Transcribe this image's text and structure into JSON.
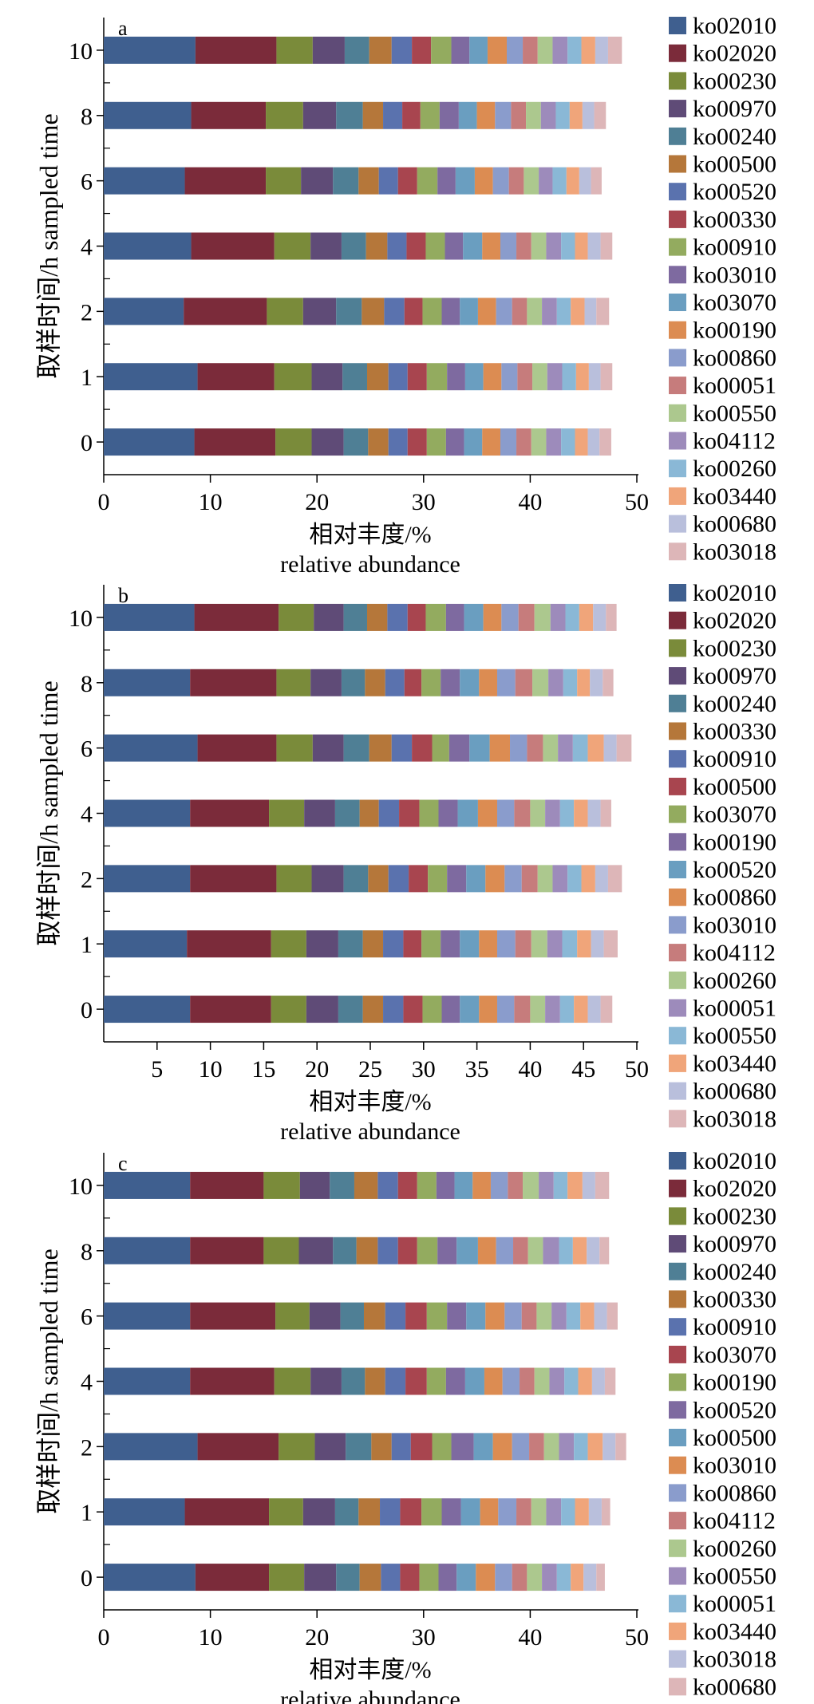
{
  "chart_data": [
    {
      "panel": "a",
      "type": "bar",
      "orientation": "horizontal",
      "stacked": true,
      "ylabel_cn": "取样时间/h",
      "ylabel_en": "sampled time",
      "xlabel_cn": "相对丰度/%",
      "xlabel_en": "relative abundance",
      "xlim": [
        0,
        50
      ],
      "xticks": [
        "0",
        "10",
        "20",
        "30",
        "40",
        "50"
      ],
      "categories": [
        "10",
        "8",
        "6",
        "4",
        "2",
        "1",
        "0"
      ],
      "series": [
        {
          "name": "ko02010",
          "color": "#3f5f8f",
          "values": [
            8.6,
            8.2,
            7.6,
            8.2,
            7.5,
            8.8,
            8.5
          ]
        },
        {
          "name": "ko02020",
          "color": "#7b2b3a",
          "values": [
            7.6,
            7.0,
            7.6,
            7.8,
            7.8,
            7.2,
            7.6
          ]
        },
        {
          "name": "ko00230",
          "color": "#7a8b3a",
          "values": [
            3.4,
            3.5,
            3.3,
            3.4,
            3.4,
            3.5,
            3.4
          ]
        },
        {
          "name": "ko00970",
          "color": "#5f4b77",
          "values": [
            3.0,
            3.1,
            3.0,
            2.9,
            3.1,
            2.9,
            3.0
          ]
        },
        {
          "name": "ko00240",
          "color": "#4f7f95",
          "values": [
            2.3,
            2.5,
            2.4,
            2.3,
            2.4,
            2.3,
            2.3
          ]
        },
        {
          "name": "ko00500",
          "color": "#b5773a",
          "values": [
            2.1,
            1.9,
            1.9,
            2.0,
            2.1,
            2.0,
            1.9
          ]
        },
        {
          "name": "ko00520",
          "color": "#5a72ae",
          "values": [
            1.9,
            1.8,
            1.8,
            1.8,
            1.9,
            1.8,
            1.8
          ]
        },
        {
          "name": "ko00330",
          "color": "#a8454f",
          "values": [
            1.8,
            1.7,
            1.8,
            1.8,
            1.7,
            1.8,
            1.8
          ]
        },
        {
          "name": "ko00910",
          "color": "#93ab5f",
          "values": [
            1.9,
            1.8,
            1.9,
            1.8,
            1.8,
            1.9,
            1.8
          ]
        },
        {
          "name": "ko03010",
          "color": "#7e6aa0",
          "values": [
            1.7,
            1.8,
            1.7,
            1.7,
            1.7,
            1.7,
            1.7
          ]
        },
        {
          "name": "ko03070",
          "color": "#6a9ec0",
          "values": [
            1.7,
            1.7,
            1.8,
            1.8,
            1.7,
            1.7,
            1.7
          ]
        },
        {
          "name": "ko00190",
          "color": "#dc8c52",
          "values": [
            1.8,
            1.7,
            1.7,
            1.7,
            1.7,
            1.7,
            1.7
          ]
        },
        {
          "name": "ko00860",
          "color": "#8a9ccc",
          "values": [
            1.5,
            1.5,
            1.5,
            1.5,
            1.5,
            1.5,
            1.5
          ]
        },
        {
          "name": "ko00051",
          "color": "#c67c7c",
          "values": [
            1.4,
            1.4,
            1.4,
            1.4,
            1.4,
            1.4,
            1.4
          ]
        },
        {
          "name": "ko00550",
          "color": "#acc88e",
          "values": [
            1.4,
            1.4,
            1.4,
            1.4,
            1.4,
            1.4,
            1.4
          ]
        },
        {
          "name": "ko04112",
          "color": "#9d8bbb",
          "values": [
            1.4,
            1.4,
            1.3,
            1.4,
            1.4,
            1.4,
            1.4
          ]
        },
        {
          "name": "ko00260",
          "color": "#8ab8d6",
          "values": [
            1.3,
            1.3,
            1.3,
            1.3,
            1.3,
            1.3,
            1.3
          ]
        },
        {
          "name": "ko03440",
          "color": "#f0a57a",
          "values": [
            1.3,
            1.2,
            1.2,
            1.2,
            1.3,
            1.2,
            1.2
          ]
        },
        {
          "name": "ko00680",
          "color": "#b9bfdc",
          "values": [
            1.2,
            1.1,
            1.1,
            1.2,
            1.1,
            1.1,
            1.1
          ]
        },
        {
          "name": "ko03018",
          "color": "#ddb6b8",
          "values": [
            1.3,
            1.1,
            1.0,
            1.1,
            1.2,
            1.1,
            1.1
          ]
        }
      ]
    },
    {
      "panel": "b",
      "type": "bar",
      "orientation": "horizontal",
      "stacked": true,
      "ylabel_cn": "取样时间/h",
      "ylabel_en": "sampled time",
      "xlabel_cn": "相对丰度/%",
      "xlabel_en": "relative abundance",
      "xlim": [
        0,
        50
      ],
      "xticks": [
        "5",
        "10",
        "15",
        "20",
        "25",
        "30",
        "35",
        "40",
        "45",
        "50"
      ],
      "categories": [
        "10",
        "8",
        "6",
        "4",
        "2",
        "1",
        "0"
      ],
      "series": [
        {
          "name": "ko02010",
          "color": "#3f5f8f",
          "values": [
            8.5,
            8.1,
            8.8,
            8.1,
            8.1,
            7.8,
            8.1
          ]
        },
        {
          "name": "ko02020",
          "color": "#7b2b3a",
          "values": [
            7.9,
            8.1,
            7.4,
            7.4,
            8.1,
            7.9,
            7.6
          ]
        },
        {
          "name": "ko00230",
          "color": "#7a8b3a",
          "values": [
            3.3,
            3.2,
            3.4,
            3.3,
            3.3,
            3.3,
            3.3
          ]
        },
        {
          "name": "ko00970",
          "color": "#5f4b77",
          "values": [
            2.8,
            2.9,
            2.9,
            2.9,
            3.0,
            3.0,
            3.0
          ]
        },
        {
          "name": "ko00240",
          "color": "#4f7f95",
          "values": [
            2.2,
            2.2,
            2.4,
            2.3,
            2.3,
            2.3,
            2.3
          ]
        },
        {
          "name": "ko00330",
          "color": "#b5773a",
          "values": [
            1.9,
            1.9,
            2.1,
            1.8,
            1.9,
            1.9,
            1.9
          ]
        },
        {
          "name": "ko00910",
          "color": "#5a72ae",
          "values": [
            1.9,
            1.8,
            1.9,
            1.9,
            1.9,
            1.9,
            1.9
          ]
        },
        {
          "name": "ko00500",
          "color": "#a8454f",
          "values": [
            1.7,
            1.6,
            1.9,
            1.9,
            1.8,
            1.7,
            1.8
          ]
        },
        {
          "name": "ko03070",
          "color": "#93ab5f",
          "values": [
            1.9,
            1.8,
            1.6,
            1.8,
            1.8,
            1.8,
            1.8
          ]
        },
        {
          "name": "ko00190",
          "color": "#7e6aa0",
          "values": [
            1.7,
            1.8,
            1.9,
            1.8,
            1.8,
            1.8,
            1.7
          ]
        },
        {
          "name": "ko00520",
          "color": "#6a9ec0",
          "values": [
            1.8,
            1.8,
            1.9,
            1.9,
            1.8,
            1.8,
            1.8
          ]
        },
        {
          "name": "ko00860",
          "color": "#dc8c52",
          "values": [
            1.7,
            1.7,
            1.9,
            1.8,
            1.8,
            1.7,
            1.7
          ]
        },
        {
          "name": "ko03010",
          "color": "#8a9ccc",
          "values": [
            1.6,
            1.7,
            1.6,
            1.6,
            1.6,
            1.7,
            1.6
          ]
        },
        {
          "name": "ko04112",
          "color": "#c67c7c",
          "values": [
            1.5,
            1.6,
            1.5,
            1.5,
            1.5,
            1.5,
            1.5
          ]
        },
        {
          "name": "ko00260",
          "color": "#acc88e",
          "values": [
            1.5,
            1.5,
            1.4,
            1.4,
            1.4,
            1.5,
            1.4
          ]
        },
        {
          "name": "ko00051",
          "color": "#9d8bbb",
          "values": [
            1.4,
            1.4,
            1.4,
            1.4,
            1.4,
            1.4,
            1.4
          ]
        },
        {
          "name": "ko00550",
          "color": "#8ab8d6",
          "values": [
            1.3,
            1.3,
            1.4,
            1.3,
            1.3,
            1.4,
            1.3
          ]
        },
        {
          "name": "ko03440",
          "color": "#f0a57a",
          "values": [
            1.3,
            1.2,
            1.5,
            1.3,
            1.3,
            1.3,
            1.3
          ]
        },
        {
          "name": "ko00680",
          "color": "#b9bfdc",
          "values": [
            1.2,
            1.2,
            1.2,
            1.2,
            1.2,
            1.2,
            1.2
          ]
        },
        {
          "name": "ko03018",
          "color": "#ddb6b8",
          "values": [
            1.0,
            1.0,
            1.4,
            1.0,
            1.3,
            1.3,
            1.1
          ]
        }
      ]
    },
    {
      "panel": "c",
      "type": "bar",
      "orientation": "horizontal",
      "stacked": true,
      "ylabel_cn": "取样时间/h",
      "ylabel_en": "sampled time",
      "xlabel_cn": "相对丰度/%",
      "xlabel_en": "relative abundance",
      "xlim": [
        0,
        50
      ],
      "xticks": [
        "0",
        "10",
        "20",
        "30",
        "40",
        "50"
      ],
      "categories": [
        "10",
        "8",
        "6",
        "4",
        "2",
        "1",
        "0"
      ],
      "series": [
        {
          "name": "ko02010",
          "color": "#3f5f8f",
          "values": [
            8.1,
            8.1,
            8.1,
            8.1,
            8.8,
            7.6,
            8.6
          ]
        },
        {
          "name": "ko02020",
          "color": "#7b2b3a",
          "values": [
            6.9,
            6.9,
            8.0,
            7.9,
            7.6,
            7.9,
            6.9
          ]
        },
        {
          "name": "ko00230",
          "color": "#7a8b3a",
          "values": [
            3.4,
            3.3,
            3.2,
            3.4,
            3.4,
            3.2,
            3.3
          ]
        },
        {
          "name": "ko00970",
          "color": "#5f4b77",
          "values": [
            2.8,
            3.2,
            2.9,
            2.9,
            2.9,
            3.0,
            3.0
          ]
        },
        {
          "name": "ko00240",
          "color": "#4f7f95",
          "values": [
            2.3,
            2.2,
            2.2,
            2.2,
            2.4,
            2.2,
            2.2
          ]
        },
        {
          "name": "ko00330",
          "color": "#b5773a",
          "values": [
            2.2,
            2.0,
            2.0,
            1.9,
            1.9,
            2.0,
            2.0
          ]
        },
        {
          "name": "ko00910",
          "color": "#5a72ae",
          "values": [
            1.9,
            1.9,
            1.9,
            1.9,
            1.8,
            1.9,
            1.8
          ]
        },
        {
          "name": "ko03070",
          "color": "#a8454f",
          "values": [
            1.8,
            1.8,
            2.0,
            2.0,
            2.0,
            2.0,
            1.8
          ]
        },
        {
          "name": "ko00190",
          "color": "#93ab5f",
          "values": [
            1.8,
            1.9,
            1.9,
            1.8,
            1.8,
            1.9,
            1.8
          ]
        },
        {
          "name": "ko00520",
          "color": "#7e6aa0",
          "values": [
            1.7,
            1.8,
            1.8,
            1.8,
            2.1,
            1.8,
            1.7
          ]
        },
        {
          "name": "ko00500",
          "color": "#6a9ec0",
          "values": [
            1.7,
            2.0,
            1.8,
            1.8,
            1.8,
            1.8,
            1.8
          ]
        },
        {
          "name": "ko03010",
          "color": "#dc8c52",
          "values": [
            1.7,
            1.7,
            1.8,
            1.7,
            1.8,
            1.7,
            1.8
          ]
        },
        {
          "name": "ko00860",
          "color": "#8a9ccc",
          "values": [
            1.6,
            1.6,
            1.6,
            1.6,
            1.6,
            1.7,
            1.6
          ]
        },
        {
          "name": "ko04112",
          "color": "#c67c7c",
          "values": [
            1.4,
            1.4,
            1.4,
            1.4,
            1.4,
            1.4,
            1.4
          ]
        },
        {
          "name": "ko00260",
          "color": "#acc88e",
          "values": [
            1.5,
            1.4,
            1.4,
            1.4,
            1.4,
            1.4,
            1.4
          ]
        },
        {
          "name": "ko00550",
          "color": "#9d8bbb",
          "values": [
            1.4,
            1.5,
            1.4,
            1.4,
            1.4,
            1.4,
            1.4
          ]
        },
        {
          "name": "ko00051",
          "color": "#8ab8d6",
          "values": [
            1.3,
            1.3,
            1.3,
            1.3,
            1.3,
            1.3,
            1.3
          ]
        },
        {
          "name": "ko03440",
          "color": "#f0a57a",
          "values": [
            1.4,
            1.3,
            1.3,
            1.3,
            1.4,
            1.3,
            1.2
          ]
        },
        {
          "name": "ko03018",
          "color": "#b9bfdc",
          "values": [
            1.2,
            1.2,
            1.2,
            1.2,
            1.2,
            1.2,
            1.2
          ]
        },
        {
          "name": "ko00680",
          "color": "#ddb6b8",
          "values": [
            1.3,
            0.9,
            1.0,
            1.0,
            1.0,
            0.8,
            0.8
          ]
        }
      ]
    }
  ]
}
